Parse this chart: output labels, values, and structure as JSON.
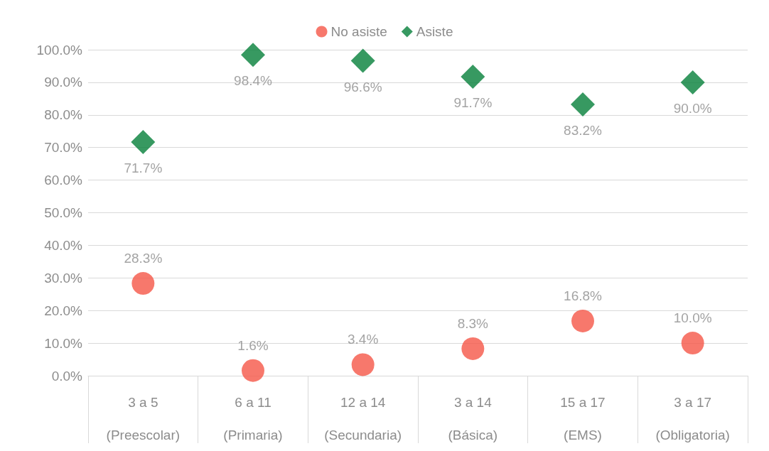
{
  "chart_data": {
    "type": "scatter",
    "categories": [
      "3 a 5\n(Preescolar)",
      "6 a 11\n(Primaria)",
      "12 a 14\n(Secundaria)",
      "3 a 14\n(Básica)",
      "15 a 17\n(EMS)",
      "3 a 17\n(Obligatoria)"
    ],
    "series": [
      {
        "name": "No asiste",
        "color": "#f55647",
        "marker": "circle",
        "values": [
          28.3,
          1.6,
          3.4,
          8.3,
          16.8,
          10.0
        ],
        "value_labels": [
          "28.3%",
          "1.6%",
          "3.4%",
          "8.3%",
          "16.8%",
          "10.0%"
        ]
      },
      {
        "name": "Asiste",
        "color": "#05803a",
        "marker": "diamond",
        "values": [
          71.7,
          98.4,
          96.6,
          91.7,
          83.2,
          90.0
        ],
        "value_labels": [
          "71.7%",
          "98.4%",
          "96.6%",
          "91.7%",
          "83.2%",
          "90.0%"
        ]
      }
    ],
    "ylim": [
      0,
      100
    ],
    "yticks": [
      {
        "value": 0,
        "label": "0.0%"
      },
      {
        "value": 10,
        "label": "10.0%"
      },
      {
        "value": 20,
        "label": "20.0%"
      },
      {
        "value": 30,
        "label": "30.0%"
      },
      {
        "value": 40,
        "label": "40.0%"
      },
      {
        "value": 50,
        "label": "50.0%"
      },
      {
        "value": 60,
        "label": "60.0%"
      },
      {
        "value": 70,
        "label": "70.0%"
      },
      {
        "value": 80,
        "label": "80.0%"
      },
      {
        "value": 90,
        "label": "90.0%"
      },
      {
        "value": 100,
        "label": "100.0%"
      }
    ],
    "grid": "y",
    "legend": "top"
  }
}
